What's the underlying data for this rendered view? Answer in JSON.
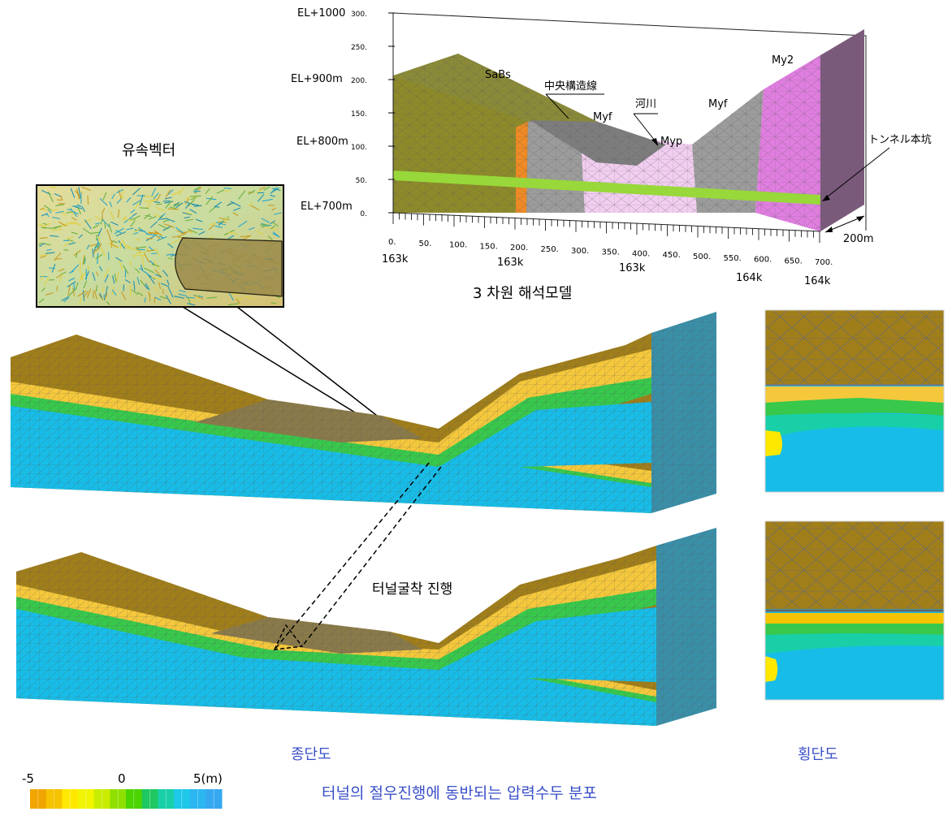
{
  "model": {
    "caption": "3 차원 해석모델",
    "elevations": [
      "EL+1000",
      "EL+900m",
      "EL+800m",
      "EL+700m"
    ],
    "z_ticks": [
      "300.",
      "250.",
      "200.",
      "150.",
      "100.",
      "50.",
      "0."
    ],
    "x_ticks": [
      "0.",
      "50.",
      "100.",
      "150.",
      "200.",
      "250.",
      "300.",
      "350.",
      "400.",
      "450.",
      "500.",
      "550.",
      "600.",
      "650.",
      "700."
    ],
    "chainages": [
      "163k",
      "163k",
      "163k",
      "164k",
      "164k"
    ],
    "depth_label": "200m",
    "geology": {
      "sabs": "SaBs",
      "fault": "中央構造線",
      "myf_left": "Myf",
      "river": "河川",
      "myp": "Myp",
      "myf_right": "Myf",
      "my2": "My2",
      "tunnel": "トンネル本坑"
    },
    "colors": {
      "sabs": "#8d8a2a",
      "fault": "#f08a24",
      "myf": "#9c9c9c",
      "myp": "#f1cdf0",
      "my2": "#e07ee0",
      "tunnel": "#98d83a",
      "end_face": "#7a5a7a"
    }
  },
  "vector": {
    "title": "유속벡터"
  },
  "sections": {
    "longitudinal_label": "종단도",
    "transverse_label": "횡단도",
    "excavation_label": "터널굴착 진행",
    "main_caption": "터널의 절우진행에 동반되는 압력수두 분포"
  },
  "legend": {
    "min": "-5",
    "mid": "0",
    "max": "5(m)",
    "colors": [
      "#f0a500",
      "#f5c300",
      "#ffe800",
      "#f1f500",
      "#c9ec00",
      "#8fe000",
      "#4bd400",
      "#1fc860",
      "#19cfa8",
      "#1fc8e8",
      "#2bb6f0",
      "#36a8f0"
    ]
  },
  "contour_colors": {
    "ground": "#a07e1a",
    "saturated": "#17bde8",
    "side": "#3a8fa8",
    "yellow": "#f5c83c",
    "green": "#37c84c"
  }
}
